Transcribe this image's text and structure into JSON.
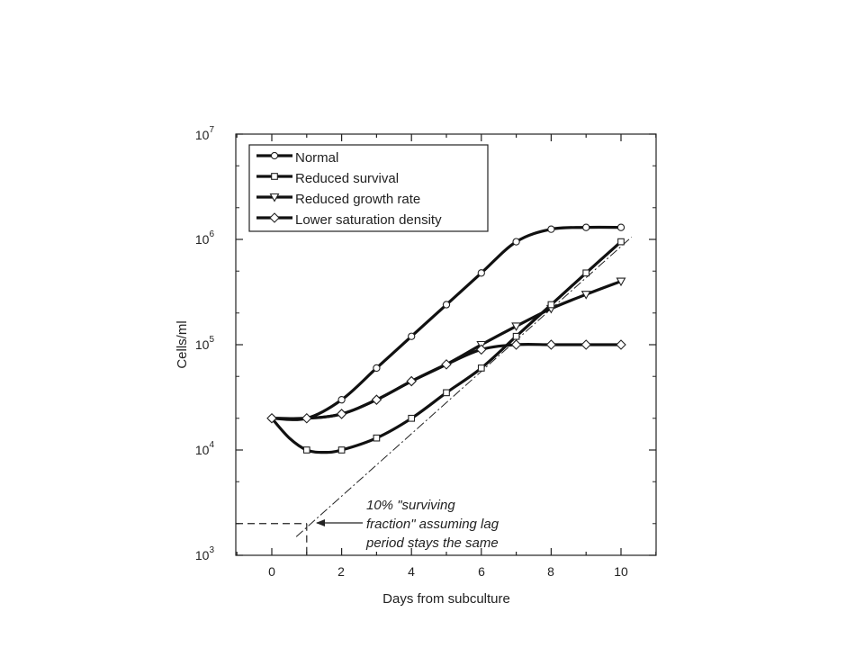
{
  "chart_data": {
    "type": "line",
    "xlabel": "Days from subculture",
    "ylabel": "Cells/ml",
    "xlim": [
      -1,
      11
    ],
    "ylim": [
      1000,
      10000000
    ],
    "y_scale": "log",
    "x_ticks": [
      0,
      2,
      4,
      6,
      8,
      10
    ],
    "x_tick_labels": [
      "0",
      "2",
      "4",
      "6",
      "8",
      "10"
    ],
    "y_ticks": [
      {
        "value": 1000,
        "base": "10",
        "exp": "3"
      },
      {
        "value": 10000,
        "base": "10",
        "exp": "4"
      },
      {
        "value": 100000,
        "base": "10",
        "exp": "5"
      },
      {
        "value": 1000000,
        "base": "10",
        "exp": "6"
      },
      {
        "value": 10000000,
        "base": "10",
        "exp": "7"
      }
    ],
    "grid": false,
    "legend_position": "top-left",
    "series": [
      {
        "name": "Normal",
        "marker": "circle",
        "points": [
          [
            0,
            20000
          ],
          [
            1,
            20000
          ],
          [
            2,
            30000
          ],
          [
            3,
            60000
          ],
          [
            4,
            120000
          ],
          [
            5,
            240000
          ],
          [
            6,
            480000
          ],
          [
            7,
            950000
          ],
          [
            8,
            1250000
          ],
          [
            9,
            1300000
          ],
          [
            10,
            1300000
          ]
        ],
        "markers_at": [
          [
            0,
            20000
          ],
          [
            2,
            30000
          ],
          [
            3,
            60000
          ],
          [
            4,
            120000
          ],
          [
            5,
            240000
          ],
          [
            6,
            480000
          ],
          [
            7,
            950000
          ],
          [
            8,
            1250000
          ],
          [
            9,
            1300000
          ],
          [
            10,
            1300000
          ]
        ]
      },
      {
        "name": "Reduced survival",
        "marker": "square",
        "points": [
          [
            0,
            20000
          ],
          [
            0.5,
            13000
          ],
          [
            1,
            10000
          ],
          [
            1.5,
            9500
          ],
          [
            2,
            10000
          ],
          [
            3,
            13000
          ],
          [
            4,
            20000
          ],
          [
            5,
            35000
          ],
          [
            6,
            60000
          ],
          [
            7,
            120000
          ],
          [
            8,
            240000
          ],
          [
            9,
            480000
          ],
          [
            10,
            950000
          ]
        ],
        "markers_at": [
          [
            1,
            10000
          ],
          [
            2,
            10000
          ],
          [
            3,
            13000
          ],
          [
            4,
            20000
          ],
          [
            5,
            35000
          ],
          [
            6,
            60000
          ],
          [
            7,
            120000
          ],
          [
            8,
            240000
          ],
          [
            9,
            480000
          ],
          [
            10,
            950000
          ]
        ]
      },
      {
        "name": "Reduced growth rate",
        "marker": "triangle-down",
        "points": [
          [
            0,
            20000
          ],
          [
            1,
            20000
          ],
          [
            2,
            22000
          ],
          [
            3,
            30000
          ],
          [
            4,
            45000
          ],
          [
            5,
            65000
          ],
          [
            6,
            100000
          ],
          [
            7,
            150000
          ],
          [
            8,
            220000
          ],
          [
            9,
            300000
          ],
          [
            10,
            400000
          ]
        ],
        "markers_at": [
          [
            6,
            100000
          ],
          [
            7,
            150000
          ],
          [
            8,
            220000
          ],
          [
            9,
            300000
          ],
          [
            10,
            400000
          ]
        ]
      },
      {
        "name": "Lower saturation density",
        "marker": "diamond",
        "points": [
          [
            0,
            20000
          ],
          [
            1,
            20000
          ],
          [
            2,
            22000
          ],
          [
            3,
            30000
          ],
          [
            4,
            45000
          ],
          [
            5,
            65000
          ],
          [
            6,
            90000
          ],
          [
            7,
            100000
          ],
          [
            8,
            100000
          ],
          [
            9,
            100000
          ],
          [
            10,
            100000
          ]
        ],
        "markers_at": [
          [
            0,
            20000
          ],
          [
            1,
            20000
          ],
          [
            2,
            22000
          ],
          [
            3,
            30000
          ],
          [
            4,
            45000
          ],
          [
            5,
            65000
          ],
          [
            6,
            90000
          ],
          [
            7,
            100000
          ],
          [
            8,
            100000
          ],
          [
            9,
            100000
          ],
          [
            10,
            100000
          ]
        ]
      }
    ],
    "extrapolation_line": {
      "points": [
        [
          0.7,
          1500
        ],
        [
          10.3,
          1050000
        ]
      ],
      "style": "dash-dot"
    },
    "reference_point": {
      "x": 1,
      "y": 2000,
      "style": "dashed"
    },
    "annotation": {
      "lines": [
        "10% \"surviving",
        "fraction\" assuming lag",
        "period stays the same"
      ],
      "arrow_to": [
        1,
        2000
      ]
    }
  }
}
